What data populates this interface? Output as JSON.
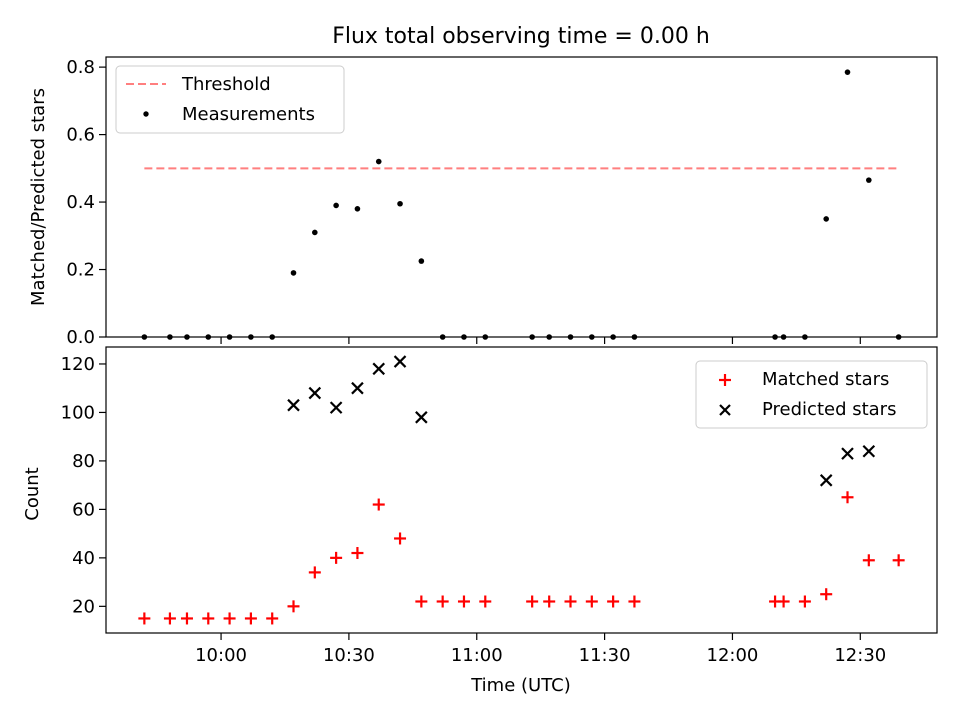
{
  "chart_data": [
    {
      "type": "scatter",
      "title": "Flux total observing time = 0.00 h",
      "xlabel": "",
      "ylabel": "Matched/Predicted stars",
      "ylim": [
        0,
        0.83
      ],
      "yticks": [
        0.0,
        0.2,
        0.4,
        0.6,
        0.8
      ],
      "ytick_labels": [
        "0.0",
        "0.2",
        "0.4",
        "0.6",
        "0.8"
      ],
      "xlim": [
        "09:33",
        "12:48"
      ],
      "xticks": [
        "10:00",
        "10:30",
        "11:00",
        "11:30",
        "12:00",
        "12:30"
      ],
      "legend_position": "top-left",
      "threshold": {
        "name": "Threshold",
        "value": 0.5,
        "x_start": "09:42",
        "x_end": "12:39",
        "color": "#ff7f7f"
      },
      "series": [
        {
          "name": "Measurements",
          "color": "#000000",
          "marker": "dot",
          "x": [
            "09:42",
            "09:48",
            "09:52",
            "09:57",
            "10:02",
            "10:07",
            "10:12",
            "10:17",
            "10:22",
            "10:27",
            "10:32",
            "10:37",
            "10:42",
            "10:47",
            "10:52",
            "10:57",
            "11:02",
            "11:13",
            "11:17",
            "11:22",
            "11:27",
            "11:32",
            "11:37",
            "12:10",
            "12:12",
            "12:17",
            "12:22",
            "12:27",
            "12:32",
            "12:39"
          ],
          "y": [
            0,
            0,
            0,
            0,
            0,
            0,
            0,
            0.19,
            0.31,
            0.39,
            0.38,
            0.52,
            0.395,
            0.225,
            0,
            0,
            0,
            0,
            0,
            0,
            0,
            0,
            0,
            0,
            0,
            0,
            0.35,
            0.785,
            0.465,
            0
          ]
        }
      ]
    },
    {
      "type": "scatter",
      "xlabel": "Time (UTC)",
      "ylabel": "Count",
      "ylim": [
        9,
        127
      ],
      "yticks": [
        20,
        40,
        60,
        80,
        100,
        120
      ],
      "ytick_labels": [
        "20",
        "40",
        "60",
        "80",
        "100",
        "120"
      ],
      "xlim": [
        "09:33",
        "12:48"
      ],
      "xticks": [
        "10:00",
        "10:30",
        "11:00",
        "11:30",
        "12:00",
        "12:30"
      ],
      "xtick_labels": [
        "10:00",
        "10:30",
        "11:00",
        "11:30",
        "12:00",
        "12:30"
      ],
      "legend_position": "top-right",
      "series": [
        {
          "name": "Matched stars",
          "color": "#ff0000",
          "marker": "plus",
          "x": [
            "09:42",
            "09:48",
            "09:52",
            "09:57",
            "10:02",
            "10:07",
            "10:12",
            "10:17",
            "10:22",
            "10:27",
            "10:32",
            "10:37",
            "10:42",
            "10:47",
            "10:52",
            "10:57",
            "11:02",
            "11:13",
            "11:17",
            "11:22",
            "11:27",
            "11:32",
            "11:37",
            "12:10",
            "12:12",
            "12:17",
            "12:22",
            "12:27",
            "12:32",
            "12:39"
          ],
          "y": [
            15,
            15,
            15,
            15,
            15,
            15,
            15,
            20,
            34,
            40,
            42,
            62,
            48,
            22,
            22,
            22,
            22,
            22,
            22,
            22,
            22,
            22,
            22,
            22,
            22,
            22,
            25,
            65,
            39,
            39
          ]
        },
        {
          "name": "Predicted stars",
          "color": "#000000",
          "marker": "x",
          "x": [
            "10:17",
            "10:22",
            "10:27",
            "10:32",
            "10:37",
            "10:42",
            "10:47",
            "12:22",
            "12:27",
            "12:32"
          ],
          "y": [
            103,
            108,
            102,
            110,
            118,
            121,
            98,
            72,
            83,
            84
          ]
        }
      ]
    }
  ]
}
